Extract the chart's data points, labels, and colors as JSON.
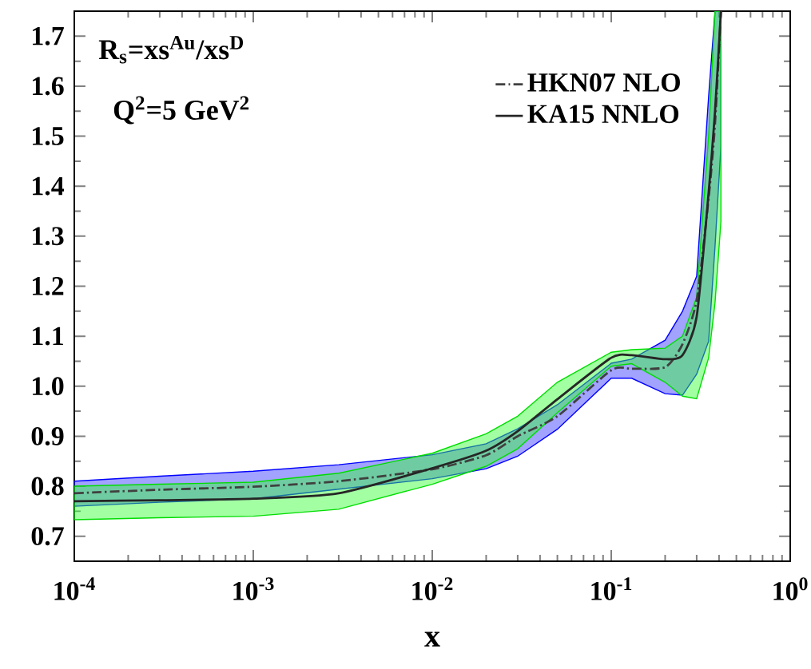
{
  "chart_data": {
    "type": "line",
    "xlabel": "x",
    "log": "x",
    "annotations": [
      "R$_{s}$=xs$^{Au}$/xs$^{D}$",
      "Q$^{2}$=5 GeV$^{2}$"
    ],
    "xlim": [
      0.0001,
      1
    ],
    "ylim": [
      0.65,
      1.75
    ],
    "xticks": [
      {
        "value": 0.0001,
        "label": "10$^{-4}$"
      },
      {
        "value": 0.001,
        "label": "10$^{-3}$"
      },
      {
        "value": 0.01,
        "label": "10$^{-2}$"
      },
      {
        "value": 0.1,
        "label": "10$^{-1}$"
      },
      {
        "value": 1,
        "label": "10$^{0}$"
      }
    ],
    "yticks": [
      0.7,
      0.8,
      0.9,
      {
        "value": 1.0,
        "label": "1.0"
      },
      1.1,
      1.2,
      1.3,
      1.4,
      1.5,
      1.6,
      1.7
    ],
    "legend": "top right",
    "grid": false,
    "marker": "none",
    "series": [
      {
        "name": "HKN07 NLO",
        "color": "#404040",
        "line_style": "dashdot",
        "x": [
          0.0001,
          0.0003,
          0.001,
          0.003,
          0.01,
          0.02,
          0.03,
          0.05,
          0.1,
          0.13,
          0.2,
          0.25,
          0.3,
          0.35,
          0.38,
          0.41
        ],
        "values": [
          0.786,
          0.793,
          0.799,
          0.81,
          0.834,
          0.862,
          0.9,
          0.94,
          1.032,
          1.035,
          1.038,
          1.084,
          1.172,
          1.376,
          1.525,
          1.75
        ],
        "upper": [
          0.81,
          0.82,
          0.83,
          0.843,
          0.863,
          0.885,
          0.915,
          0.963,
          1.046,
          1.054,
          1.092,
          1.15,
          1.22,
          1.58,
          1.75,
          1.75
        ],
        "lower": [
          0.76,
          0.768,
          0.775,
          0.794,
          0.815,
          0.835,
          0.86,
          0.914,
          1.016,
          1.016,
          0.985,
          0.982,
          1.024,
          1.09,
          1.28,
          1.48
        ]
      },
      {
        "name": "KA15  NNLO",
        "color": "#262626",
        "line_style": "solid",
        "x": [
          0.0001,
          0.0003,
          0.001,
          0.003,
          0.01,
          0.02,
          0.03,
          0.05,
          0.1,
          0.13,
          0.2,
          0.25,
          0.3,
          0.35,
          0.38,
          0.41
        ],
        "values": [
          0.77,
          0.772,
          0.775,
          0.786,
          0.836,
          0.871,
          0.91,
          0.974,
          1.057,
          1.062,
          1.054,
          1.062,
          1.139,
          1.387,
          1.55,
          1.75
        ],
        "upper": [
          0.8,
          0.804,
          0.808,
          0.826,
          0.866,
          0.905,
          0.94,
          1.008,
          1.068,
          1.073,
          1.076,
          1.1,
          1.178,
          1.5,
          1.75,
          1.75
        ],
        "lower": [
          0.733,
          0.737,
          0.74,
          0.754,
          0.804,
          0.84,
          0.875,
          0.947,
          1.04,
          1.045,
          1.008,
          0.98,
          0.975,
          1.057,
          1.167,
          1.33
        ]
      }
    ]
  }
}
